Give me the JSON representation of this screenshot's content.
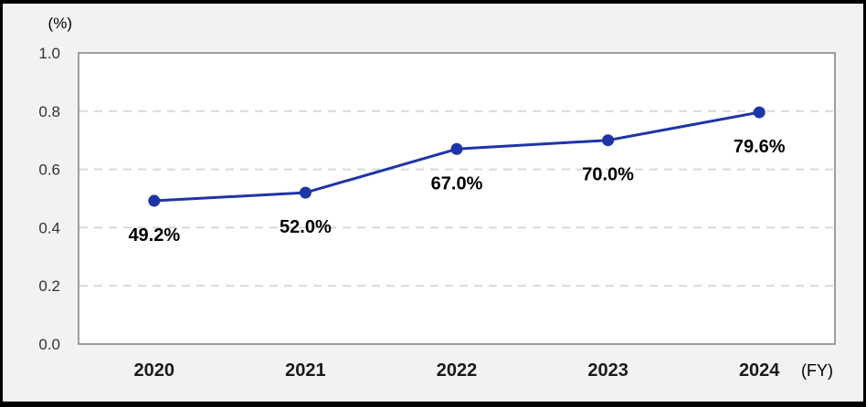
{
  "chart_data": {
    "type": "line",
    "title": "",
    "unit_label": "(%)",
    "x_axis_suffix": "(FY)",
    "categories": [
      "2020",
      "2021",
      "2022",
      "2023",
      "2024"
    ],
    "series": [
      {
        "name": "percentage-by-fiscal-year",
        "values": [
          0.492,
          0.52,
          0.67,
          0.7,
          0.796
        ],
        "point_labels": [
          "49.2%",
          "52.0%",
          "67.0%",
          "70.0%",
          "79.6%"
        ]
      }
    ],
    "y_ticks": [
      {
        "value": 0.0,
        "label": "0.0"
      },
      {
        "value": 0.2,
        "label": "0.2"
      },
      {
        "value": 0.4,
        "label": "0.4"
      },
      {
        "value": 0.6,
        "label": "0.6"
      },
      {
        "value": 0.8,
        "label": "0.8"
      },
      {
        "value": 1.0,
        "label": "1.0"
      }
    ],
    "ylim": [
      0.0,
      1.0
    ],
    "grid": {
      "horizontal": true,
      "style": "dashed"
    },
    "legend": "none",
    "colors": {
      "line": "#1e35a8",
      "marker": "#1e35a8",
      "gridline": "#d9d9d9",
      "plot_background": "#ffffff",
      "plot_border": "#808080",
      "outer_background": "#f2f2f2",
      "frame_border": "#000000",
      "axis_tick_text": "#333333",
      "category_text": "#1a1a1a",
      "data_label_text": "#000000"
    }
  }
}
